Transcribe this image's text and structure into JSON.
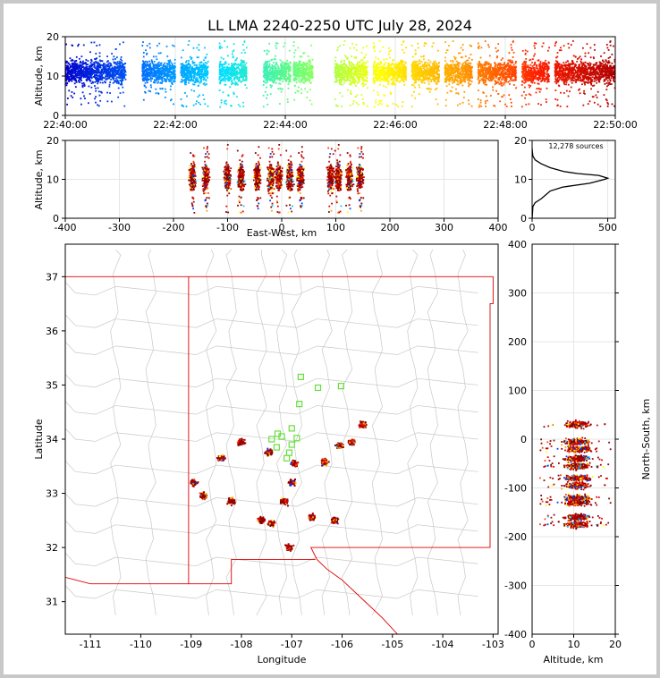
{
  "figure": {
    "title": "LL LMA 2240-2250 UTC July 28, 2024",
    "source_count": "12,278 sources"
  },
  "chart_data": [
    {
      "id": "time-altitude",
      "type": "scatter",
      "title": "LL LMA 2240-2250 UTC July 28, 2024",
      "xlabel": "",
      "ylabel": "Altitude, km",
      "xlim": [
        "22:40:00",
        "22:50:00"
      ],
      "ylim": [
        0,
        20
      ],
      "x_ticks": [
        "22:40:00",
        "22:42:00",
        "22:44:00",
        "22:46:00",
        "22:48:00",
        "22:50:00"
      ],
      "y_ticks": [
        0,
        10,
        20
      ],
      "color_by": "time",
      "colormap": [
        "#0000cc",
        "#0070ff",
        "#00e0ff",
        "#70ff70",
        "#ffff00",
        "#ffa000",
        "#ff2000",
        "#b00000"
      ],
      "activity_minutes": [
        [
          0.0,
          1.1
        ],
        [
          1.4,
          2.0
        ],
        [
          2.1,
          2.6
        ],
        [
          2.8,
          3.3
        ],
        [
          3.6,
          4.1
        ],
        [
          4.15,
          4.5
        ],
        [
          4.9,
          5.5
        ],
        [
          5.6,
          6.2
        ],
        [
          6.3,
          6.8
        ],
        [
          6.9,
          7.4
        ],
        [
          7.5,
          8.2
        ],
        [
          8.3,
          8.8
        ],
        [
          8.9,
          10.0
        ]
      ]
    },
    {
      "id": "ew-altitude",
      "type": "scatter",
      "xlabel": "East-West, km",
      "ylabel": "Altitude, km",
      "xlim": [
        -400,
        400
      ],
      "ylim": [
        0,
        20
      ],
      "x_ticks": [
        -400,
        -300,
        -200,
        -100,
        0,
        100,
        200,
        300,
        400
      ],
      "y_ticks": [
        0,
        10,
        20
      ],
      "clusters_x_km": [
        -165,
        -140,
        -100,
        -75,
        -45,
        -20,
        -5,
        15,
        35,
        90,
        105,
        125,
        145
      ]
    },
    {
      "id": "altitude-histogram",
      "type": "line",
      "xlabel": "",
      "ylabel": "",
      "xlim": [
        0,
        550
      ],
      "ylim": [
        0,
        20
      ],
      "x_ticks": [
        0,
        500
      ],
      "y_ticks": [
        0,
        10,
        20
      ],
      "annotation": "12,278 sources",
      "profile": [
        [
          0,
          0
        ],
        [
          2,
          1
        ],
        [
          5,
          3
        ],
        [
          20,
          4
        ],
        [
          60,
          5
        ],
        [
          90,
          6
        ],
        [
          120,
          7
        ],
        [
          200,
          8
        ],
        [
          380,
          9
        ],
        [
          480,
          10
        ],
        [
          500,
          10.3
        ],
        [
          440,
          11
        ],
        [
          300,
          11.5
        ],
        [
          210,
          12
        ],
        [
          120,
          13
        ],
        [
          60,
          14
        ],
        [
          20,
          15
        ],
        [
          5,
          16
        ],
        [
          2,
          17
        ],
        [
          0,
          18
        ]
      ]
    },
    {
      "id": "plan-view",
      "type": "scatter",
      "xlabel": "Longitude",
      "ylabel": "Latitude",
      "xlim": [
        -111.5,
        -102.9
      ],
      "ylim": [
        30.4,
        37.6
      ],
      "x_ticks": [
        -111,
        -110,
        -109,
        -108,
        -107,
        -106,
        -105,
        -104,
        -103
      ],
      "y_ticks": [
        31,
        32,
        33,
        34,
        35,
        36,
        37
      ],
      "stations": [
        [
          -106.82,
          35.15
        ],
        [
          -106.48,
          34.95
        ],
        [
          -106.02,
          34.98
        ],
        [
          -106.85,
          34.65
        ],
        [
          -107.0,
          34.2
        ],
        [
          -107.2,
          34.05
        ],
        [
          -106.9,
          34.02
        ],
        [
          -107.0,
          33.9
        ],
        [
          -107.4,
          34.0
        ],
        [
          -107.3,
          33.85
        ],
        [
          -107.05,
          33.75
        ],
        [
          -107.1,
          33.65
        ],
        [
          -107.28,
          34.1
        ]
      ],
      "storm_clusters": [
        [
          -107.45,
          33.75
        ],
        [
          -106.95,
          33.55
        ],
        [
          -106.35,
          33.58
        ],
        [
          -105.8,
          33.95
        ],
        [
          -106.05,
          33.88
        ],
        [
          -105.6,
          34.27
        ],
        [
          -107.0,
          33.2
        ],
        [
          -107.15,
          32.85
        ],
        [
          -108.2,
          32.85
        ],
        [
          -108.75,
          32.95
        ],
        [
          -107.4,
          32.45
        ],
        [
          -107.6,
          32.5
        ],
        [
          -108.4,
          33.65
        ],
        [
          -108.95,
          33.2
        ],
        [
          -108.0,
          33.95
        ],
        [
          -107.05,
          32.0
        ],
        [
          -106.6,
          32.55
        ],
        [
          -106.15,
          32.5
        ]
      ]
    },
    {
      "id": "altitude-ns",
      "type": "scatter",
      "xlabel": "Altitude, km",
      "ylabel": "North-South, km",
      "xlim": [
        0,
        20
      ],
      "ylim": [
        -400,
        400
      ],
      "x_ticks": [
        0,
        10,
        20
      ],
      "y_ticks": [
        -400,
        -300,
        -200,
        -100,
        0,
        100,
        200,
        300,
        400
      ],
      "clusters_ns_km": [
        30,
        -5,
        -20,
        -40,
        -55,
        -80,
        -95,
        -120,
        -130,
        -160,
        -175
      ]
    }
  ]
}
